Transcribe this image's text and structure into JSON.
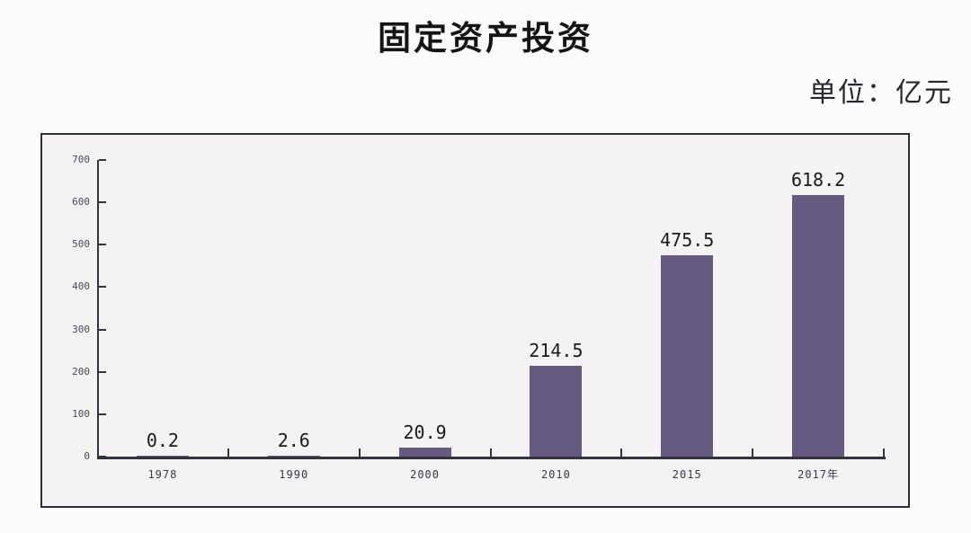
{
  "title": "固定资产投资",
  "unit_label": "单位：亿元",
  "chart_data": {
    "type": "bar",
    "title": "固定资产投资",
    "unit": "亿元",
    "categories": [
      "1978",
      "1990",
      "2000",
      "2010",
      "2015",
      "2017年"
    ],
    "values": [
      0.2,
      2.6,
      20.9,
      214.5,
      475.5,
      618.2
    ],
    "xlabel": "",
    "ylabel": "",
    "ylim": [
      0,
      700
    ],
    "yticks": [
      0,
      100,
      200,
      300,
      400,
      500,
      600,
      700
    ],
    "grid": false,
    "legend_position": "none",
    "bar_color": "#675a80",
    "axis_color": "#33333d",
    "plot_background": "#f5f2f4",
    "frame_border_color": "#2e2e38"
  }
}
